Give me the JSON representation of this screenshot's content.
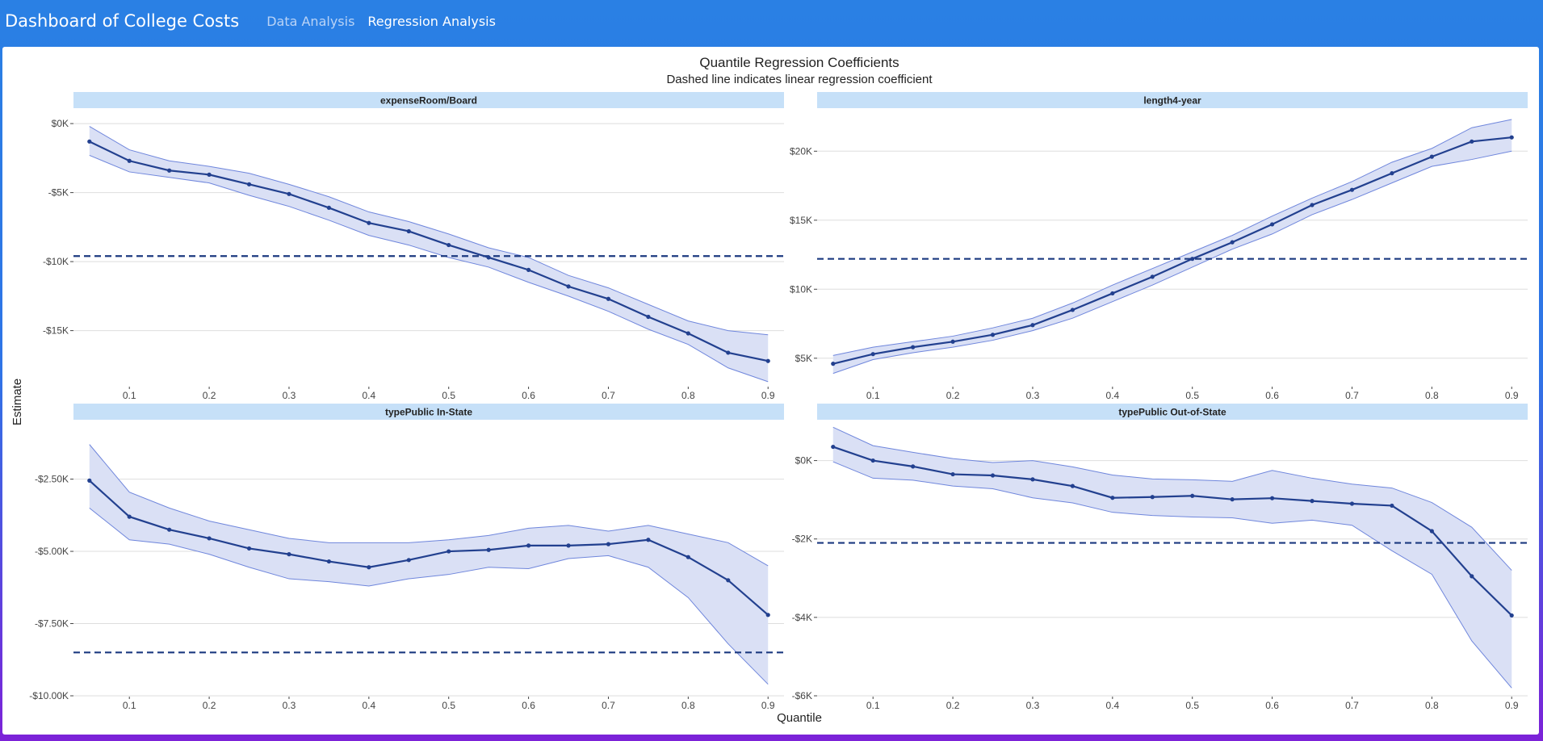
{
  "header": {
    "title": "Dashboard of College Costs",
    "nav": [
      {
        "label": "Data Analysis",
        "active": false
      },
      {
        "label": "Regression Analysis",
        "active": true
      }
    ]
  },
  "colors": {
    "header_blue": "#2a80e4",
    "strip": "#c6e0f8",
    "ribbon_fill": "#dae0f5",
    "ribbon_edge": "#6f86dc",
    "line": "#22408f",
    "dashed": "#1c3a80",
    "grid": "#dedede"
  },
  "chart_data": {
    "type": "line",
    "title": "Quantile Regression Coefficients",
    "subtitle": "Dashed line indicates linear regression coefficient",
    "xlabel": "Quantile",
    "ylabel": "Estimate",
    "x_ticks": [
      0.1,
      0.2,
      0.3,
      0.4,
      0.5,
      0.6,
      0.7,
      0.8,
      0.9
    ],
    "grid": true,
    "panels": [
      {
        "name": "expenseRoom/Board",
        "ylim": [
          -19000,
          1000
        ],
        "y_ticks": [
          0,
          -5000,
          -10000,
          -15000
        ],
        "y_tick_labels": [
          "$0K",
          "-$5K",
          "-$10K",
          "-$15K"
        ],
        "ols": -9600,
        "x": [
          0.05,
          0.1,
          0.15,
          0.2,
          0.25,
          0.3,
          0.35,
          0.4,
          0.45,
          0.5,
          0.55,
          0.6,
          0.65,
          0.7,
          0.75,
          0.8,
          0.85,
          0.9
        ],
        "estimate": [
          -1300,
          -2700,
          -3400,
          -3700,
          -4400,
          -5100,
          -6100,
          -7200,
          -7800,
          -8800,
          -9700,
          -10600,
          -11800,
          -12700,
          -14000,
          -15200,
          -16600,
          -17200
        ],
        "lower": [
          -2300,
          -3500,
          -3900,
          -4300,
          -5200,
          -6000,
          -7000,
          -8100,
          -8800,
          -9700,
          -10400,
          -11500,
          -12500,
          -13600,
          -14900,
          -16000,
          -17700,
          -18700
        ],
        "upper": [
          -200,
          -1900,
          -2700,
          -3100,
          -3600,
          -4400,
          -5300,
          -6400,
          -7100,
          -8000,
          -9000,
          -9700,
          -11000,
          -11900,
          -13100,
          -14300,
          -15000,
          -15300
        ]
      },
      {
        "name": "length4-year",
        "ylim": [
          3000,
          23000
        ],
        "y_ticks": [
          5000,
          10000,
          15000,
          20000
        ],
        "y_tick_labels": [
          "$5K",
          "$10K",
          "$15K",
          "$20K"
        ],
        "ols": 12200,
        "x": [
          0.05,
          0.1,
          0.15,
          0.2,
          0.25,
          0.3,
          0.35,
          0.4,
          0.45,
          0.5,
          0.55,
          0.6,
          0.65,
          0.7,
          0.75,
          0.8,
          0.85,
          0.9
        ],
        "estimate": [
          4600,
          5300,
          5800,
          6200,
          6700,
          7400,
          8500,
          9700,
          10900,
          12200,
          13400,
          14700,
          16100,
          17200,
          18400,
          19600,
          20700,
          21000
        ],
        "lower": [
          3900,
          4900,
          5400,
          5800,
          6300,
          7000,
          7900,
          9100,
          10300,
          11600,
          12900,
          14000,
          15400,
          16500,
          17700,
          18900,
          19400,
          20000
        ],
        "upper": [
          5200,
          5800,
          6200,
          6600,
          7200,
          7900,
          9000,
          10300,
          11500,
          12700,
          13900,
          15300,
          16600,
          17800,
          19200,
          20200,
          21700,
          22300
        ]
      },
      {
        "name": "typePublic In-State",
        "ylim": [
          -10000,
          -500
        ],
        "y_ticks": [
          -2500,
          -5000,
          -7500,
          -10000
        ],
        "y_tick_labels": [
          "-$2.50K",
          "-$5.00K",
          "-$7.50K",
          "-$10.00K"
        ],
        "ols": -8500,
        "x": [
          0.05,
          0.1,
          0.15,
          0.2,
          0.25,
          0.3,
          0.35,
          0.4,
          0.45,
          0.5,
          0.55,
          0.6,
          0.65,
          0.7,
          0.75,
          0.8,
          0.85,
          0.9
        ],
        "estimate": [
          -2550,
          -3800,
          -4250,
          -4550,
          -4900,
          -5100,
          -5350,
          -5550,
          -5300,
          -5000,
          -4950,
          -4800,
          -4800,
          -4750,
          -4600,
          -5200,
          -6000,
          -7200
        ],
        "lower": [
          -3500,
          -4600,
          -4750,
          -5100,
          -5550,
          -5950,
          -6050,
          -6200,
          -5950,
          -5800,
          -5550,
          -5600,
          -5250,
          -5150,
          -5550,
          -6600,
          -8200,
          -9600
        ],
        "upper": [
          -1300,
          -2950,
          -3500,
          -3950,
          -4250,
          -4550,
          -4700,
          -4700,
          -4700,
          -4600,
          -4450,
          -4200,
          -4100,
          -4300,
          -4100,
          -4400,
          -4700,
          -5500
        ]
      },
      {
        "name": "typePublic Out-of-State",
        "ylim": [
          -6000,
          1000
        ],
        "y_ticks": [
          0,
          -2000,
          -4000,
          -6000
        ],
        "y_tick_labels": [
          "$0K",
          "-$2K",
          "-$4K",
          "-$6K"
        ],
        "ols": -2100,
        "x": [
          0.05,
          0.1,
          0.15,
          0.2,
          0.25,
          0.3,
          0.35,
          0.4,
          0.45,
          0.5,
          0.55,
          0.6,
          0.65,
          0.7,
          0.75,
          0.8,
          0.85,
          0.9
        ],
        "estimate": [
          350,
          0,
          -150,
          -350,
          -380,
          -480,
          -650,
          -950,
          -930,
          -900,
          -990,
          -960,
          -1030,
          -1100,
          -1150,
          -1800,
          -2950,
          -3950
        ],
        "lower": [
          -30,
          -450,
          -500,
          -650,
          -720,
          -950,
          -1080,
          -1320,
          -1400,
          -1440,
          -1460,
          -1600,
          -1520,
          -1650,
          -2300,
          -2900,
          -4600,
          -5800
        ],
        "upper": [
          850,
          380,
          210,
          50,
          -50,
          0,
          -160,
          -370,
          -470,
          -490,
          -530,
          -250,
          -450,
          -600,
          -700,
          -1070,
          -1700,
          -2800
        ]
      }
    ]
  }
}
